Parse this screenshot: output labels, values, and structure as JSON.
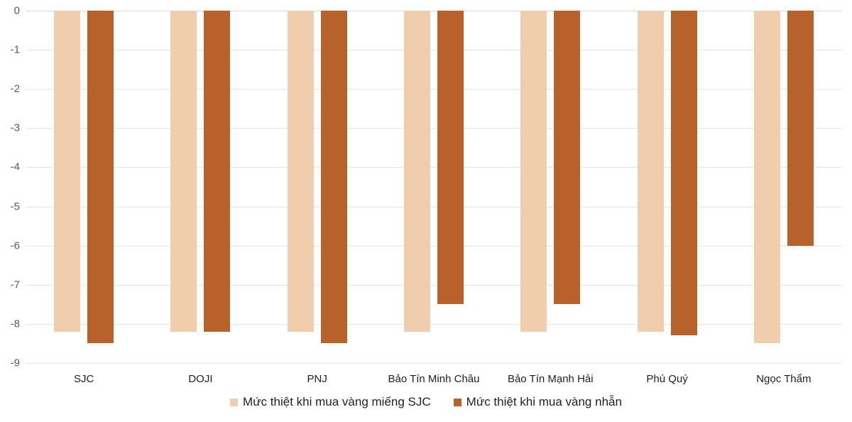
{
  "chart_data": {
    "type": "bar",
    "orientation": "vertical",
    "title": "",
    "xlabel": "",
    "ylabel": "",
    "categories": [
      "SJC",
      "DOJI",
      "PNJ",
      "Bảo Tín Minh Châu",
      "Bảo Tín Mạnh Hải",
      "Phú Quý",
      "Ngọc Thẩm"
    ],
    "series": [
      {
        "name": "Mức thiệt khi mua vàng miếng SJC",
        "color": "#F0CDAD",
        "values": [
          -8.2,
          -8.2,
          -8.2,
          -8.2,
          -8.2,
          -8.2,
          -8.5
        ]
      },
      {
        "name": "Mức thiệt khi mua vàng nhẫn",
        "color": "#B7622B",
        "values": [
          -8.5,
          -8.2,
          -8.5,
          -7.5,
          -7.5,
          -8.3,
          -6.0
        ]
      }
    ],
    "ylim": [
      -9,
      0
    ],
    "yticks": [
      0,
      -1,
      -2,
      -3,
      -4,
      -5,
      -6,
      -7,
      -8,
      -9
    ],
    "grid": true,
    "legend_position": "bottom"
  },
  "colors": {
    "background": "#FFFFFF",
    "gridline": "#E4E4E4",
    "zero_line": "#D9D9D9",
    "y_tick_label": "#595959",
    "x_tick_label": "#1F1F1F",
    "legend_label": "#1F1F1F"
  }
}
